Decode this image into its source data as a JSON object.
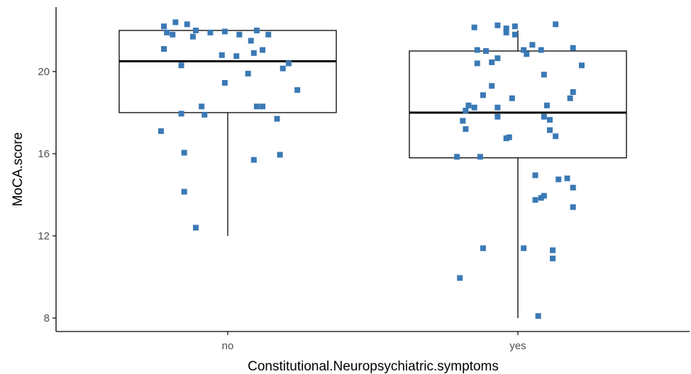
{
  "chart_data": {
    "type": "box",
    "xlabel": "Constitutional.Neuropsychiatric.symptoms",
    "ylabel": "MoCA.score",
    "categories": [
      "no",
      "yes"
    ],
    "y_ticks": [
      8,
      12,
      16,
      20
    ],
    "ylim": [
      7.5,
      22.6
    ],
    "grid": false,
    "boxes": [
      {
        "category": "no",
        "lower_whisker": 12,
        "q1": 18,
        "median": 20.5,
        "q3": 22,
        "upper_whisker": 22
      },
      {
        "category": "yes",
        "lower_whisker": 8,
        "q1": 15.8,
        "median": 18,
        "q3": 21,
        "upper_whisker": 22
      }
    ],
    "points": [
      {
        "category": "no",
        "x": -0.22,
        "y": 22.2
      },
      {
        "category": "no",
        "x": -0.18,
        "y": 22.4
      },
      {
        "category": "no",
        "x": -0.14,
        "y": 22.3
      },
      {
        "category": "no",
        "x": -0.11,
        "y": 22.0
      },
      {
        "category": "no",
        "x": -0.21,
        "y": 21.9
      },
      {
        "category": "no",
        "x": -0.19,
        "y": 21.8
      },
      {
        "category": "no",
        "x": -0.12,
        "y": 21.7
      },
      {
        "category": "no",
        "x": -0.06,
        "y": 21.9
      },
      {
        "category": "no",
        "x": -0.01,
        "y": 21.95
      },
      {
        "category": "no",
        "x": 0.04,
        "y": 21.8
      },
      {
        "category": "no",
        "x": 0.08,
        "y": 21.5
      },
      {
        "category": "no",
        "x": 0.1,
        "y": 22.0
      },
      {
        "category": "no",
        "x": 0.14,
        "y": 21.8
      },
      {
        "category": "no",
        "x": -0.22,
        "y": 21.1
      },
      {
        "category": "no",
        "x": 0.12,
        "y": 21.05
      },
      {
        "category": "no",
        "x": 0.09,
        "y": 20.9
      },
      {
        "category": "no",
        "x": -0.02,
        "y": 20.8
      },
      {
        "category": "no",
        "x": 0.03,
        "y": 20.75
      },
      {
        "category": "no",
        "x": -0.16,
        "y": 20.3
      },
      {
        "category": "no",
        "x": 0.21,
        "y": 20.4
      },
      {
        "category": "no",
        "x": 0.19,
        "y": 20.15
      },
      {
        "category": "no",
        "x": 0.07,
        "y": 19.9
      },
      {
        "category": "no",
        "x": -0.01,
        "y": 19.45
      },
      {
        "category": "no",
        "x": 0.24,
        "y": 19.1
      },
      {
        "category": "no",
        "x": -0.09,
        "y": 18.3
      },
      {
        "category": "no",
        "x": 0.1,
        "y": 18.3
      },
      {
        "category": "no",
        "x": 0.12,
        "y": 18.3
      },
      {
        "category": "no",
        "x": -0.16,
        "y": 17.95
      },
      {
        "category": "no",
        "x": -0.08,
        "y": 17.9
      },
      {
        "category": "no",
        "x": 0.17,
        "y": 17.7
      },
      {
        "category": "no",
        "x": -0.23,
        "y": 17.1
      },
      {
        "category": "no",
        "x": -0.15,
        "y": 16.05
      },
      {
        "category": "no",
        "x": 0.18,
        "y": 15.95
      },
      {
        "category": "no",
        "x": 0.09,
        "y": 15.7
      },
      {
        "category": "no",
        "x": -0.15,
        "y": 14.15
      },
      {
        "category": "no",
        "x": -0.11,
        "y": 12.4
      },
      {
        "category": "yes",
        "x": -0.15,
        "y": 22.15
      },
      {
        "category": "yes",
        "x": -0.07,
        "y": 22.25
      },
      {
        "category": "yes",
        "x": -0.04,
        "y": 22.1
      },
      {
        "category": "yes",
        "x": -0.01,
        "y": 22.2
      },
      {
        "category": "yes",
        "x": -0.04,
        "y": 21.9
      },
      {
        "category": "yes",
        "x": -0.01,
        "y": 21.8
      },
      {
        "category": "yes",
        "x": 0.13,
        "y": 22.3
      },
      {
        "category": "yes",
        "x": 0.05,
        "y": 21.3
      },
      {
        "category": "yes",
        "x": -0.14,
        "y": 21.05
      },
      {
        "category": "yes",
        "x": -0.11,
        "y": 21.0
      },
      {
        "category": "yes",
        "x": 0.02,
        "y": 21.05
      },
      {
        "category": "yes",
        "x": 0.03,
        "y": 20.85
      },
      {
        "category": "yes",
        "x": 0.08,
        "y": 21.05
      },
      {
        "category": "yes",
        "x": 0.19,
        "y": 21.15
      },
      {
        "category": "yes",
        "x": -0.07,
        "y": 20.65
      },
      {
        "category": "yes",
        "x": -0.09,
        "y": 20.45
      },
      {
        "category": "yes",
        "x": -0.14,
        "y": 20.4
      },
      {
        "category": "yes",
        "x": 0.22,
        "y": 20.3
      },
      {
        "category": "yes",
        "x": 0.09,
        "y": 19.85
      },
      {
        "category": "yes",
        "x": -0.09,
        "y": 19.3
      },
      {
        "category": "yes",
        "x": 0.19,
        "y": 19.0
      },
      {
        "category": "yes",
        "x": 0.18,
        "y": 18.7
      },
      {
        "category": "yes",
        "x": -0.12,
        "y": 18.85
      },
      {
        "category": "yes",
        "x": -0.02,
        "y": 18.7
      },
      {
        "category": "yes",
        "x": -0.17,
        "y": 18.35
      },
      {
        "category": "yes",
        "x": -0.18,
        "y": 18.1
      },
      {
        "category": "yes",
        "x": -0.15,
        "y": 18.25
      },
      {
        "category": "yes",
        "x": -0.07,
        "y": 18.25
      },
      {
        "category": "yes",
        "x": 0.1,
        "y": 18.35
      },
      {
        "category": "yes",
        "x": -0.07,
        "y": 17.8
      },
      {
        "category": "yes",
        "x": 0.09,
        "y": 17.8
      },
      {
        "category": "yes",
        "x": 0.11,
        "y": 17.65
      },
      {
        "category": "yes",
        "x": -0.19,
        "y": 17.6
      },
      {
        "category": "yes",
        "x": -0.18,
        "y": 17.2
      },
      {
        "category": "yes",
        "x": 0.11,
        "y": 17.15
      },
      {
        "category": "yes",
        "x": 0.13,
        "y": 16.85
      },
      {
        "category": "yes",
        "x": -0.04,
        "y": 16.75
      },
      {
        "category": "yes",
        "x": -0.03,
        "y": 16.8
      },
      {
        "category": "yes",
        "x": -0.21,
        "y": 15.85
      },
      {
        "category": "yes",
        "x": -0.13,
        "y": 15.85
      },
      {
        "category": "yes",
        "x": 0.06,
        "y": 14.95
      },
      {
        "category": "yes",
        "x": 0.14,
        "y": 14.75
      },
      {
        "category": "yes",
        "x": 0.17,
        "y": 14.8
      },
      {
        "category": "yes",
        "x": 0.19,
        "y": 14.35
      },
      {
        "category": "yes",
        "x": 0.09,
        "y": 13.95
      },
      {
        "category": "yes",
        "x": 0.08,
        "y": 13.85
      },
      {
        "category": "yes",
        "x": 0.06,
        "y": 13.75
      },
      {
        "category": "yes",
        "x": 0.19,
        "y": 13.4
      },
      {
        "category": "yes",
        "x": -0.12,
        "y": 11.4
      },
      {
        "category": "yes",
        "x": 0.02,
        "y": 11.4
      },
      {
        "category": "yes",
        "x": 0.12,
        "y": 11.3
      },
      {
        "category": "yes",
        "x": 0.12,
        "y": 10.9
      },
      {
        "category": "yes",
        "x": -0.2,
        "y": 9.95
      },
      {
        "category": "yes",
        "x": 0.07,
        "y": 8.1
      }
    ],
    "colors": {
      "points": "#3a79b5",
      "box": "#000000",
      "axis": "#000000",
      "tick_text": "#4d4d4d",
      "background": "#ffffff"
    }
  }
}
